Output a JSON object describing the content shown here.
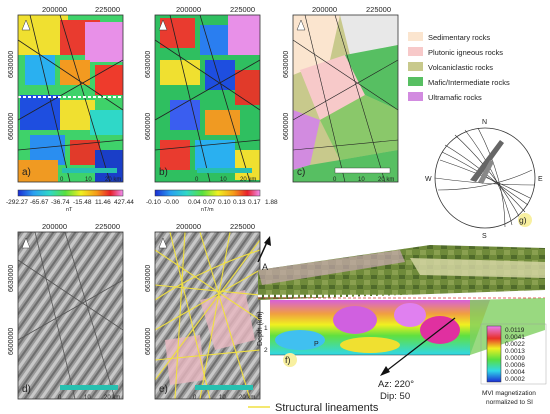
{
  "axes": {
    "x_ticks_top": [
      "200000",
      "225000"
    ],
    "y_ticks_top": [
      "6630000",
      "6600000"
    ],
    "x_ticks_bottom": [
      "200000",
      "225000"
    ],
    "y_ticks_bottom": [
      "6630000",
      "6600000"
    ]
  },
  "panels": {
    "a": {
      "label": "a)",
      "colorbar_ticks": [
        "-292.27",
        "-65.67",
        "-36.74",
        "-15.48",
        "11.46",
        "427.44"
      ],
      "unit": "nT"
    },
    "b": {
      "label": "b)",
      "colorbar_ticks": [
        "-0.10",
        "-0.00",
        "0.04",
        "0.07",
        "0.10",
        "0.13",
        "0.17",
        "1.88"
      ],
      "unit": "nT/m"
    },
    "c": {
      "label": "c)"
    },
    "d": {
      "label": "d)"
    },
    "e": {
      "label": "e)"
    },
    "f": {
      "label": "f)"
    },
    "g": {
      "label": "g)"
    }
  },
  "scale_bar": {
    "mid": "10",
    "end": "20 km",
    "zero": "0"
  },
  "geology_legend": [
    {
      "label": "Sedimentary rocks",
      "color": "#fbe5cf"
    },
    {
      "label": "Plutonic igneous rocks",
      "color": "#f7c9c9"
    },
    {
      "label": "Volcaniclastic rocks",
      "color": "#c8c98c"
    },
    {
      "label": "Mafic/Intermediate rocks",
      "color": "#57bf62"
    },
    {
      "label": "Ultramafic rocks",
      "color": "#d28be0"
    }
  ],
  "stereonet": {
    "north": "N",
    "east": "E",
    "south": "S",
    "west": "W"
  },
  "lineament_legend": {
    "label": "Structural lineaments",
    "color": "#f0e040"
  },
  "section": {
    "depth_label": "Depth (km)",
    "depth_ticks": [
      "1",
      "2"
    ],
    "azimuth": "Az: 220°",
    "dip": "Dip: 50",
    "mvi_ticks": [
      "0.0119",
      "0.0041",
      "0.0022",
      "0.0013",
      "0.0009",
      "0.0006",
      "0.0004",
      "0.0002"
    ],
    "mvi_caption_1": "MVI magnetization",
    "mvi_caption_2": "normalized to SI",
    "marker": "P"
  }
}
